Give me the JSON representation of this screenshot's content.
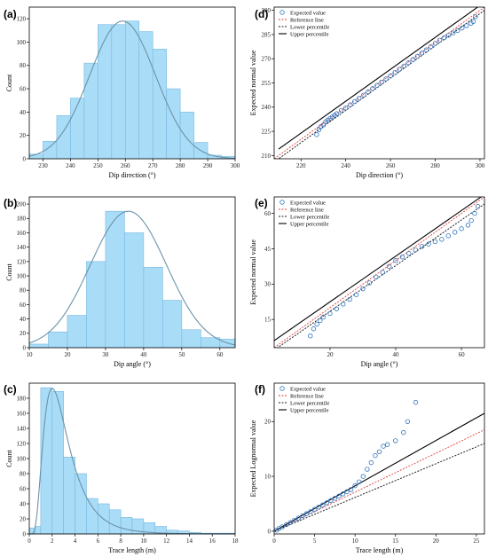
{
  "colors": {
    "bar_fill": "#a9dcf7",
    "bar_stroke": "#78b8e0",
    "curve": "#6b93a8",
    "point_stroke": "#2f74c0",
    "reference_line": "#e0403a",
    "lower_percentile": "#222222",
    "upper_percentile": "#000000",
    "axis": "#000000"
  },
  "chart_data": [
    {
      "id": "a",
      "label": "(a)",
      "type": "bar",
      "xlabel": "Dip direction (°)",
      "ylabel": "Count",
      "xlim": [
        225,
        300
      ],
      "ylim": [
        0,
        130
      ],
      "xticks": [
        230,
        240,
        250,
        260,
        270,
        280,
        290,
        300
      ],
      "yticks": [
        0,
        20,
        40,
        60,
        80,
        100,
        120
      ],
      "bin_edges": [
        225,
        230,
        235,
        240,
        245,
        250,
        255,
        260,
        265,
        270,
        275,
        280,
        285,
        290,
        295,
        300
      ],
      "values": [
        4,
        15,
        37,
        52,
        82,
        115,
        115,
        118,
        109,
        94,
        60,
        40,
        14,
        3,
        2
      ],
      "fit": {
        "dist": "normal",
        "peak": 118,
        "mean": 259,
        "sd": 12
      }
    },
    {
      "id": "b",
      "label": "(b)",
      "type": "bar",
      "xlabel": "Dip angle (°)",
      "ylabel": "Count",
      "xlim": [
        10,
        64
      ],
      "ylim": [
        0,
        210
      ],
      "xticks": [
        10,
        20,
        30,
        40,
        50,
        60
      ],
      "yticks": [
        0,
        20,
        40,
        60,
        80,
        100,
        120,
        140,
        160,
        180,
        200
      ],
      "bin_edges": [
        10,
        15,
        20,
        25,
        30,
        35,
        40,
        45,
        50,
        55,
        60,
        64
      ],
      "values": [
        5,
        22,
        45,
        120,
        190,
        160,
        112,
        66,
        25,
        14,
        12
      ],
      "fit": {
        "dist": "normal",
        "peak": 190,
        "mean": 36,
        "sd": 10
      }
    },
    {
      "id": "c",
      "label": "(c)",
      "type": "bar",
      "xlabel": "Trace length (m)",
      "ylabel": "Count",
      "xlim": [
        0,
        18
      ],
      "ylim": [
        0,
        200
      ],
      "xticks": [
        0,
        2,
        4,
        6,
        8,
        10,
        12,
        14,
        16,
        18
      ],
      "yticks": [
        0,
        20,
        40,
        60,
        80,
        100,
        120,
        140,
        160,
        180
      ],
      "bin_edges": [
        0,
        0.5,
        1,
        2,
        3,
        4,
        5,
        6,
        7,
        8,
        9,
        10,
        11,
        12,
        13,
        14,
        15,
        16,
        17,
        18
      ],
      "values": [
        8,
        10,
        194,
        189,
        102,
        80,
        47,
        40,
        32,
        22,
        20,
        15,
        10,
        5,
        4,
        2,
        1,
        1,
        1
      ],
      "fit": {
        "dist": "lognormal",
        "peak": 193,
        "mu": 1.0,
        "sigma": 0.55
      }
    },
    {
      "id": "d",
      "label": "(d)",
      "type": "scatter",
      "xlabel": "Dip direction (°)",
      "ylabel": "Expected normal value",
      "xlim": [
        208,
        302
      ],
      "ylim": [
        208,
        302
      ],
      "xticks": [
        220,
        240,
        260,
        280,
        300
      ],
      "yticks": [
        210,
        225,
        240,
        255,
        270,
        285,
        300
      ],
      "series": [
        {
          "name": "Expected value",
          "kind": "points"
        },
        {
          "name": "Reference line",
          "kind": "line",
          "x": [
            208,
            302
          ],
          "y": [
            208,
            302
          ]
        },
        {
          "name": "Lower percentile",
          "kind": "line",
          "x": [
            208,
            302
          ],
          "y": [
            206,
            300
          ]
        },
        {
          "name": "Upper percentile",
          "kind": "line",
          "x": [
            210,
            302
          ],
          "y": [
            214,
            305
          ]
        }
      ],
      "points": [
        [
          227,
          223
        ],
        [
          228,
          226
        ],
        [
          229,
          228
        ],
        [
          230,
          229
        ],
        [
          231,
          231
        ],
        [
          232,
          232
        ],
        [
          233,
          233
        ],
        [
          234,
          234
        ],
        [
          235,
          235
        ],
        [
          236,
          236
        ],
        [
          238,
          238
        ],
        [
          240,
          239.5
        ],
        [
          242,
          241.5
        ],
        [
          244,
          243.5
        ],
        [
          246,
          245.5
        ],
        [
          248,
          247.5
        ],
        [
          250,
          249.5
        ],
        [
          252,
          251.5
        ],
        [
          254,
          253.5
        ],
        [
          256,
          255.5
        ],
        [
          258,
          257.5
        ],
        [
          260,
          259.5
        ],
        [
          262,
          261.5
        ],
        [
          264,
          263.5
        ],
        [
          266,
          265.5
        ],
        [
          268,
          267.5
        ],
        [
          270,
          269.5
        ],
        [
          272,
          271.5
        ],
        [
          274,
          273.5
        ],
        [
          276,
          275.5
        ],
        [
          278,
          277.5
        ],
        [
          280,
          279.5
        ],
        [
          282,
          281.5
        ],
        [
          284,
          283
        ],
        [
          286,
          284.5
        ],
        [
          288,
          286
        ],
        [
          290,
          287.5
        ],
        [
          292,
          289
        ],
        [
          294,
          290.5
        ],
        [
          296,
          292
        ],
        [
          297,
          293
        ],
        [
          298,
          296
        ]
      ]
    },
    {
      "id": "e",
      "label": "(e)",
      "type": "scatter",
      "xlabel": "Dip angle (°)",
      "ylabel": "Expected normal value",
      "xlim": [
        3,
        67
      ],
      "ylim": [
        3,
        67
      ],
      "xticks": [
        20,
        40,
        60
      ],
      "yticks": [
        15,
        30,
        45,
        60
      ],
      "series": [
        {
          "name": "Expected value",
          "kind": "points"
        },
        {
          "name": "Reference line",
          "kind": "line",
          "x": [
            3,
            67
          ],
          "y": [
            3,
            67
          ]
        },
        {
          "name": "Lower percentile",
          "kind": "line",
          "x": [
            3,
            67
          ],
          "y": [
            2,
            64
          ]
        },
        {
          "name": "Upper percentile",
          "kind": "line",
          "x": [
            3,
            67
          ],
          "y": [
            6,
            68
          ]
        }
      ],
      "points": [
        [
          14,
          8
        ],
        [
          15,
          11
        ],
        [
          16,
          13
        ],
        [
          17,
          14.5
        ],
        [
          18,
          16
        ],
        [
          20,
          17.5
        ],
        [
          22,
          19.5
        ],
        [
          24,
          21.5
        ],
        [
          26,
          23.5
        ],
        [
          28,
          25.5
        ],
        [
          30,
          28
        ],
        [
          32,
          30.5
        ],
        [
          34,
          33
        ],
        [
          36,
          35
        ],
        [
          38,
          37.5
        ],
        [
          40,
          40
        ],
        [
          42,
          41.5
        ],
        [
          44,
          43
        ],
        [
          46,
          44.5
        ],
        [
          48,
          46
        ],
        [
          50,
          47
        ],
        [
          52,
          48
        ],
        [
          54,
          49
        ],
        [
          56,
          50.5
        ],
        [
          58,
          52
        ],
        [
          60,
          53.5
        ],
        [
          62,
          55
        ],
        [
          63,
          57
        ],
        [
          64,
          60
        ],
        [
          65,
          63
        ]
      ]
    },
    {
      "id": "f",
      "label": "(f)",
      "type": "scatter",
      "xlabel": "Trace length (m)",
      "ylabel": "Expected Lognormal value",
      "xlim": [
        0,
        26
      ],
      "ylim": [
        -0.5,
        27
      ],
      "xticks": [
        0,
        5,
        10,
        15,
        20,
        25
      ],
      "yticks": [
        0,
        10,
        20
      ],
      "series": [
        {
          "name": "Expected value",
          "kind": "points"
        },
        {
          "name": "Reference line",
          "kind": "line",
          "x": [
            0,
            26
          ],
          "y": [
            0,
            18.5
          ]
        },
        {
          "name": "Lower percentile",
          "kind": "line",
          "x": [
            0,
            26
          ],
          "y": [
            0,
            16
          ]
        },
        {
          "name": "Upper percentile",
          "kind": "line",
          "x": [
            0,
            26
          ],
          "y": [
            0,
            21.5
          ]
        }
      ],
      "points": [
        [
          0.3,
          0.2
        ],
        [
          0.6,
          0.5
        ],
        [
          1,
          0.8
        ],
        [
          1.5,
          1.2
        ],
        [
          2,
          1.6
        ],
        [
          2.5,
          2
        ],
        [
          3,
          2.4
        ],
        [
          3.5,
          2.8
        ],
        [
          4,
          3.2
        ],
        [
          4.5,
          3.6
        ],
        [
          5,
          4
        ],
        [
          5.5,
          4.4
        ],
        [
          6,
          4.8
        ],
        [
          6.5,
          5.2
        ],
        [
          7,
          5.6
        ],
        [
          7.5,
          6
        ],
        [
          8,
          6.4
        ],
        [
          8.5,
          6.8
        ],
        [
          9,
          7.2
        ],
        [
          9.5,
          7.6
        ],
        [
          10,
          8.3
        ],
        [
          10.5,
          9
        ],
        [
          11,
          10
        ],
        [
          11.5,
          11.3
        ],
        [
          12,
          12.5
        ],
        [
          12.5,
          13.8
        ],
        [
          13,
          14.5
        ],
        [
          13.5,
          15.5
        ],
        [
          14,
          15.8
        ],
        [
          15,
          16.5
        ],
        [
          16,
          18
        ],
        [
          16.5,
          20
        ],
        [
          17.5,
          23.5
        ]
      ]
    }
  ]
}
